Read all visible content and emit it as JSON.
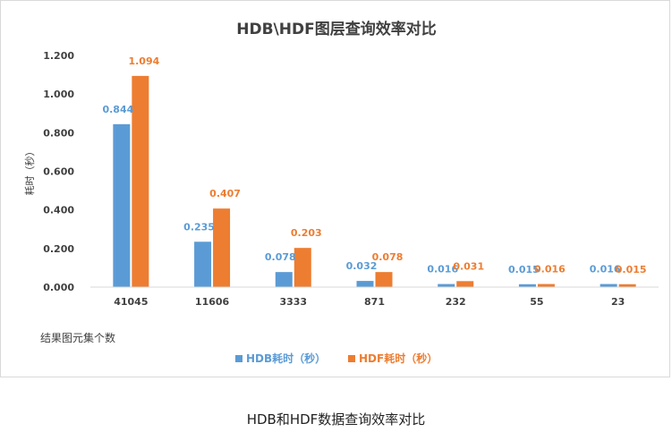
{
  "chart_data": {
    "type": "bar",
    "title": "HDB\\HDF图层查询效率对比",
    "xlabel": "结果图元集个数",
    "ylabel": "耗时（秒）",
    "ylim": [
      0,
      1.2
    ],
    "yticks": [
      "0.000",
      "0.200",
      "0.400",
      "0.600",
      "0.800",
      "1.000",
      "1.200"
    ],
    "categories": [
      "41045",
      "11606",
      "3333",
      "871",
      "232",
      "55",
      "23"
    ],
    "series": [
      {
        "name": "HDB耗时（秒）",
        "color": "#5b9bd5",
        "values": [
          0.844,
          0.235,
          0.078,
          0.032,
          0.016,
          0.015,
          0.016
        ],
        "labels": [
          "0.844",
          "0.235",
          "0.078",
          "0.032",
          "0.016",
          "0.015",
          "0.016"
        ]
      },
      {
        "name": "HDF耗时（秒）",
        "color": "#ed7d31",
        "values": [
          1.094,
          0.407,
          0.203,
          0.078,
          0.031,
          0.016,
          0.015
        ],
        "labels": [
          "1.094",
          "0.407",
          "0.203",
          "0.078",
          "0.031",
          "0.016",
          "0.015"
        ]
      }
    ],
    "legend_position": "bottom",
    "grid": false
  },
  "caption": "HDB和HDF数据查询效率对比"
}
